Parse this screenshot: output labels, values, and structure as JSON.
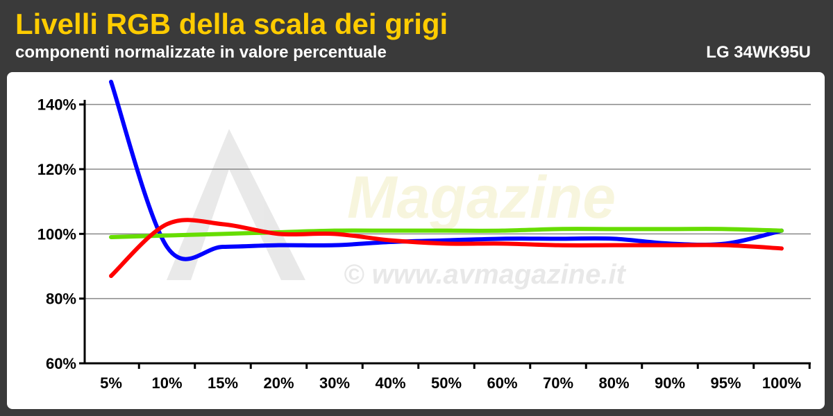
{
  "header": {
    "title": "Livelli RGB della scala dei grigi",
    "subtitle": "componenti normalizzate in valore percentuale",
    "model": "LG 34WK95U"
  },
  "watermark": {
    "brand": "Magazine",
    "url": "© www.avmagazine.it"
  },
  "colors": {
    "background": "#3a3a3a",
    "title": "#ffcc00",
    "blue": "#0000ff",
    "red": "#ff0000",
    "green": "#66dd00",
    "grid": "#888888"
  },
  "chart_data": {
    "type": "line",
    "title": "Livelli RGB della scala dei grigi",
    "subtitle": "componenti normalizzate in valore percentuale",
    "xlabel": "",
    "ylabel": "",
    "ylim": [
      60,
      150
    ],
    "yticks": [
      "60%",
      "80%",
      "100%",
      "120%",
      "140%"
    ],
    "ytick_values": [
      60,
      80,
      100,
      120,
      140
    ],
    "categories": [
      "5%",
      "10%",
      "15%",
      "20%",
      "30%",
      "40%",
      "50%",
      "60%",
      "70%",
      "80%",
      "90%",
      "95%",
      "100%"
    ],
    "grid": true,
    "legend": "none",
    "series": [
      {
        "color": "#0000ff",
        "values": [
          147,
          96,
          96,
          96.5,
          96.5,
          97.5,
          98,
          98.5,
          98.5,
          98.5,
          97,
          97,
          101
        ]
      },
      {
        "color": "#66dd00",
        "values": [
          99,
          99.5,
          100,
          100.5,
          101,
          101,
          101,
          101,
          101.5,
          101.5,
          101.5,
          101.5,
          101
        ]
      },
      {
        "color": "#ff0000",
        "values": [
          87,
          103,
          103,
          100,
          100,
          98,
          97,
          97,
          96.5,
          96.5,
          96.5,
          96.5,
          95.5
        ]
      }
    ]
  }
}
